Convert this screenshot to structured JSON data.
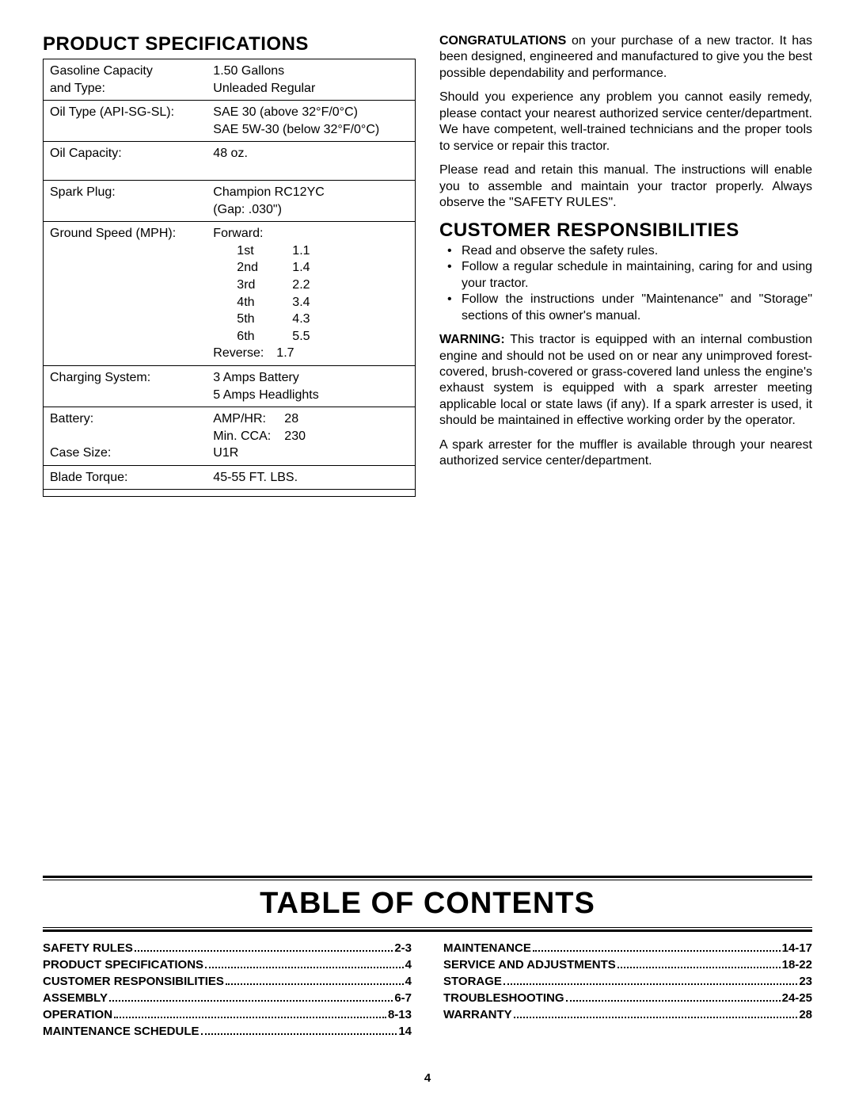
{
  "headings": {
    "product_spec": "PRODUCT SPECIFICATIONS",
    "customer_resp": "CUSTOMER RESPONSIBILITIES",
    "toc": "TABLE OF CONTENTS"
  },
  "specs": {
    "gas_label": "Gasoline Capacity\nand Type:",
    "gas_value": "1.50 Gallons\nUnleaded Regular",
    "oil_type_label": "Oil Type (API-SG-SL):",
    "oil_type_value": "SAE 30 (above 32°F/0°C)\nSAE 5W-30 (below 32°F/0°C)",
    "oil_cap_label": "Oil Capacity:",
    "oil_cap_value": "48 oz.",
    "spark_label": "Spark Plug:",
    "spark_value": "Champion RC12YC\n(Gap:  .030\")",
    "speed_label": "Ground Speed (MPH):",
    "speed_forward": "Forward:",
    "speed_reverse": "Reverse:",
    "speeds": [
      {
        "gear": "1st",
        "mph": "1.1"
      },
      {
        "gear": "2nd",
        "mph": "1.4"
      },
      {
        "gear": "3rd",
        "mph": "2.2"
      },
      {
        "gear": "4th",
        "mph": "3.4"
      },
      {
        "gear": "5th",
        "mph": "4.3"
      },
      {
        "gear": "6th",
        "mph": "5.5"
      }
    ],
    "speed_rev_val": "1.7",
    "charging_label": "Charging System:",
    "charging_value": "3 Amps Battery\n5 Amps Headlights",
    "battery_label": "Battery:",
    "battery_amp_label": "AMP/HR:",
    "battery_amp_val": "28",
    "battery_cca_label": "Min. CCA:",
    "battery_cca_val": "230",
    "case_label": "Case Size:",
    "case_value": "U1R",
    "blade_label": "Blade Torque:",
    "blade_value": "45-55 FT. LBS."
  },
  "paragraphs": {
    "congrats_bold": "CONGRATULATIONS",
    "congrats_rest": " on your purchase of a new tractor. It has been designed, engineered and manufactured to give you the best possible dependability and performance.",
    "p2": "Should you experience any problem you cannot easily remedy, please contact your nearest authorized service center/department. We have competent, well-trained technicians and the proper tools to service or repair this tractor.",
    "p3": "Please read and retain this manual. The instructions will enable you to assemble and maintain your tractor properly. Always observe the \"SAFETY RULES\".",
    "cr1": "Read and observe the safety rules.",
    "cr2": "Follow a regular schedule in maintaining, caring for and using your tractor.",
    "cr3": "Follow the instructions under \"Maintenance\" and \"Storage\" sections of this owner's manual.",
    "warning_bold": "WARNING:",
    "warning_rest": " This tractor is equipped with an internal combustion engine and should not be used on or near any unimproved forest-covered, brush-covered or grass-covered land unless the engine's exhaust system is equipped with a spark arrester meeting applicable local or state laws (if any). If a spark arrester is used, it should be maintained in effective working order by the operator.",
    "p5": "A spark arrester for the muffler is available through your nearest authorized service center/department."
  },
  "toc": {
    "left": [
      {
        "label": "SAFETY RULES",
        "page": "2-3"
      },
      {
        "label": "PRODUCT SPECIFICATIONS",
        "page": "4"
      },
      {
        "label": "CUSTOMER RESPONSIBILITIES",
        "page": "4"
      },
      {
        "label": "ASSEMBLY",
        "page": "6-7"
      },
      {
        "label": "OPERATION",
        "page": "8-13"
      },
      {
        "label": "MAINTENANCE SCHEDULE",
        "page": "14"
      }
    ],
    "right": [
      {
        "label": "MAINTENANCE",
        "page": "14-17"
      },
      {
        "label": "SERVICE AND ADJUSTMENTS",
        "page": "18-22"
      },
      {
        "label": "STORAGE",
        "page": "23"
      },
      {
        "label": "TROUBLESHOOTING",
        "page": "24-25"
      },
      {
        "label": "WARRANTY",
        "page": "28"
      }
    ]
  },
  "page_number": "4"
}
